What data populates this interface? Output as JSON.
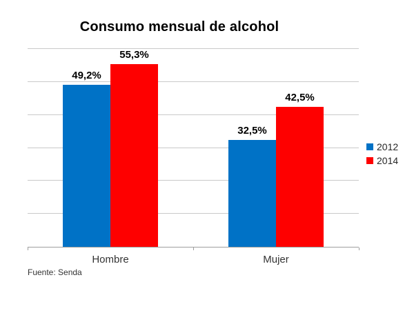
{
  "chart_data": {
    "type": "bar",
    "title": "Consumo mensual de alcohol",
    "categories": [
      "Hombre",
      "Mujer"
    ],
    "series": [
      {
        "name": "2012",
        "color": "#0072C6",
        "values": [
          49.2,
          32.5
        ],
        "labels": [
          "49,2%",
          "32,5%"
        ]
      },
      {
        "name": "2014",
        "color": "#FE0000",
        "values": [
          55.3,
          42.5
        ],
        "labels": [
          "55,3%",
          "42,5%"
        ]
      }
    ],
    "ylim": [
      0,
      60
    ],
    "grid_step": 10,
    "grid": "horizontal",
    "y_axis_labels_visible": false,
    "legend_position": "right",
    "source": "Fuente: Senda",
    "axis_color": "#9d9d9d",
    "gridline_color": "#c9c9c9"
  }
}
